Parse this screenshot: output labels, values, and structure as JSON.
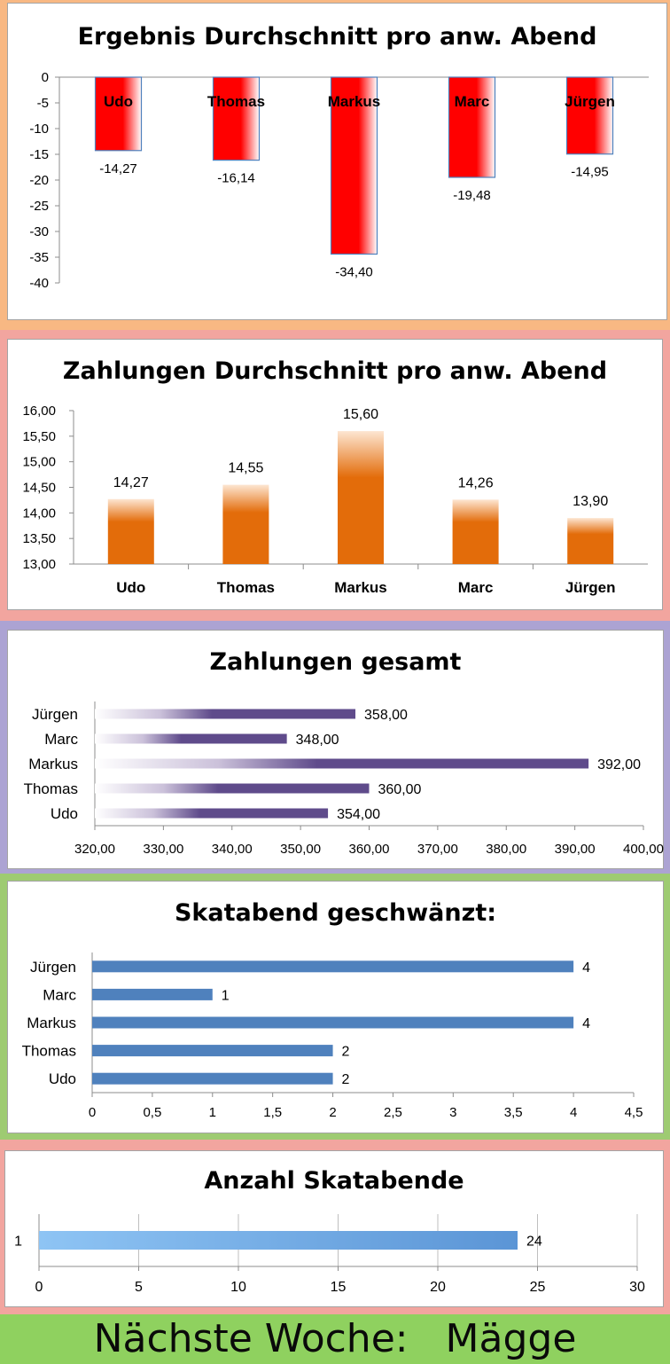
{
  "chart_data": [
    {
      "type": "bar",
      "title": "Ergebnis Durchschnitt pro anw. Abend",
      "categories": [
        "Udo",
        "Thomas",
        "Markus",
        "Marc",
        "Jürgen"
      ],
      "values": [
        -14.27,
        -16.14,
        -34.4,
        -19.48,
        -14.95
      ],
      "value_labels": [
        "-14,27",
        "-16,14",
        "-34,40",
        "-19,48",
        "-14,95"
      ],
      "ylim": [
        -40,
        0
      ],
      "yticks": [
        "0",
        "-5",
        "-10",
        "-15",
        "-20",
        "-25",
        "-30",
        "-35",
        "-40"
      ],
      "bar_color": "#ff0000",
      "grid": false
    },
    {
      "type": "bar",
      "title": "Zahlungen Durchschnitt pro anw. Abend",
      "categories": [
        "Udo",
        "Thomas",
        "Markus",
        "Marc",
        "Jürgen"
      ],
      "values": [
        14.27,
        14.55,
        15.6,
        14.26,
        13.9
      ],
      "value_labels": [
        "14,27",
        "14,55",
        "15,60",
        "14,26",
        "13,90"
      ],
      "ylim": [
        13.0,
        16.0
      ],
      "yticks": [
        "16,00",
        "15,50",
        "15,00",
        "14,50",
        "14,00",
        "13,50",
        "13,00"
      ],
      "bar_color": "#e36c0a",
      "grid": false
    },
    {
      "type": "bar",
      "orientation": "horizontal",
      "title": "Zahlungen gesamt",
      "categories": [
        "Jürgen",
        "Marc",
        "Markus",
        "Thomas",
        "Udo"
      ],
      "values": [
        358,
        348,
        392,
        360,
        354
      ],
      "value_labels": [
        "358,00",
        "348,00",
        "392,00",
        "360,00",
        "354,00"
      ],
      "xlim": [
        320,
        400
      ],
      "xticks": [
        "320,00",
        "330,00",
        "340,00",
        "350,00",
        "360,00",
        "370,00",
        "380,00",
        "390,00",
        "400,00"
      ],
      "bar_color": "#5f4b8b",
      "grid": false
    },
    {
      "type": "bar",
      "orientation": "horizontal",
      "title": "Skatabend geschwänzt:",
      "categories": [
        "Jürgen",
        "Marc",
        "Markus",
        "Thomas",
        "Udo"
      ],
      "values": [
        4,
        1,
        4,
        2,
        2
      ],
      "value_labels": [
        "4",
        "1",
        "4",
        "2",
        "2"
      ],
      "xlim": [
        0,
        4.5
      ],
      "xticks": [
        "0",
        "0,5",
        "1",
        "1,5",
        "2",
        "2,5",
        "3",
        "3,5",
        "4",
        "4,5"
      ],
      "bar_color": "#4f81bd",
      "grid": false
    },
    {
      "type": "bar",
      "orientation": "horizontal",
      "title": "Anzahl Skatabende",
      "categories": [
        "1"
      ],
      "values": [
        24
      ],
      "value_labels": [
        "24"
      ],
      "xlim": [
        0,
        30
      ],
      "xticks": [
        "0",
        "5",
        "10",
        "15",
        "20",
        "25",
        "30"
      ],
      "bar_color": "#6fa8e8",
      "grid": true
    }
  ],
  "footer": {
    "text": "Nächste Woche:   Mägge"
  },
  "colors": {
    "band_1": "#f8b883",
    "band_2": "#f2a59f",
    "band_3": "#aca3d3",
    "band_4": "#9ecb72",
    "band_5": "#f2a59f",
    "footer": "#8fd15f",
    "axis": "#8c8c8c"
  }
}
